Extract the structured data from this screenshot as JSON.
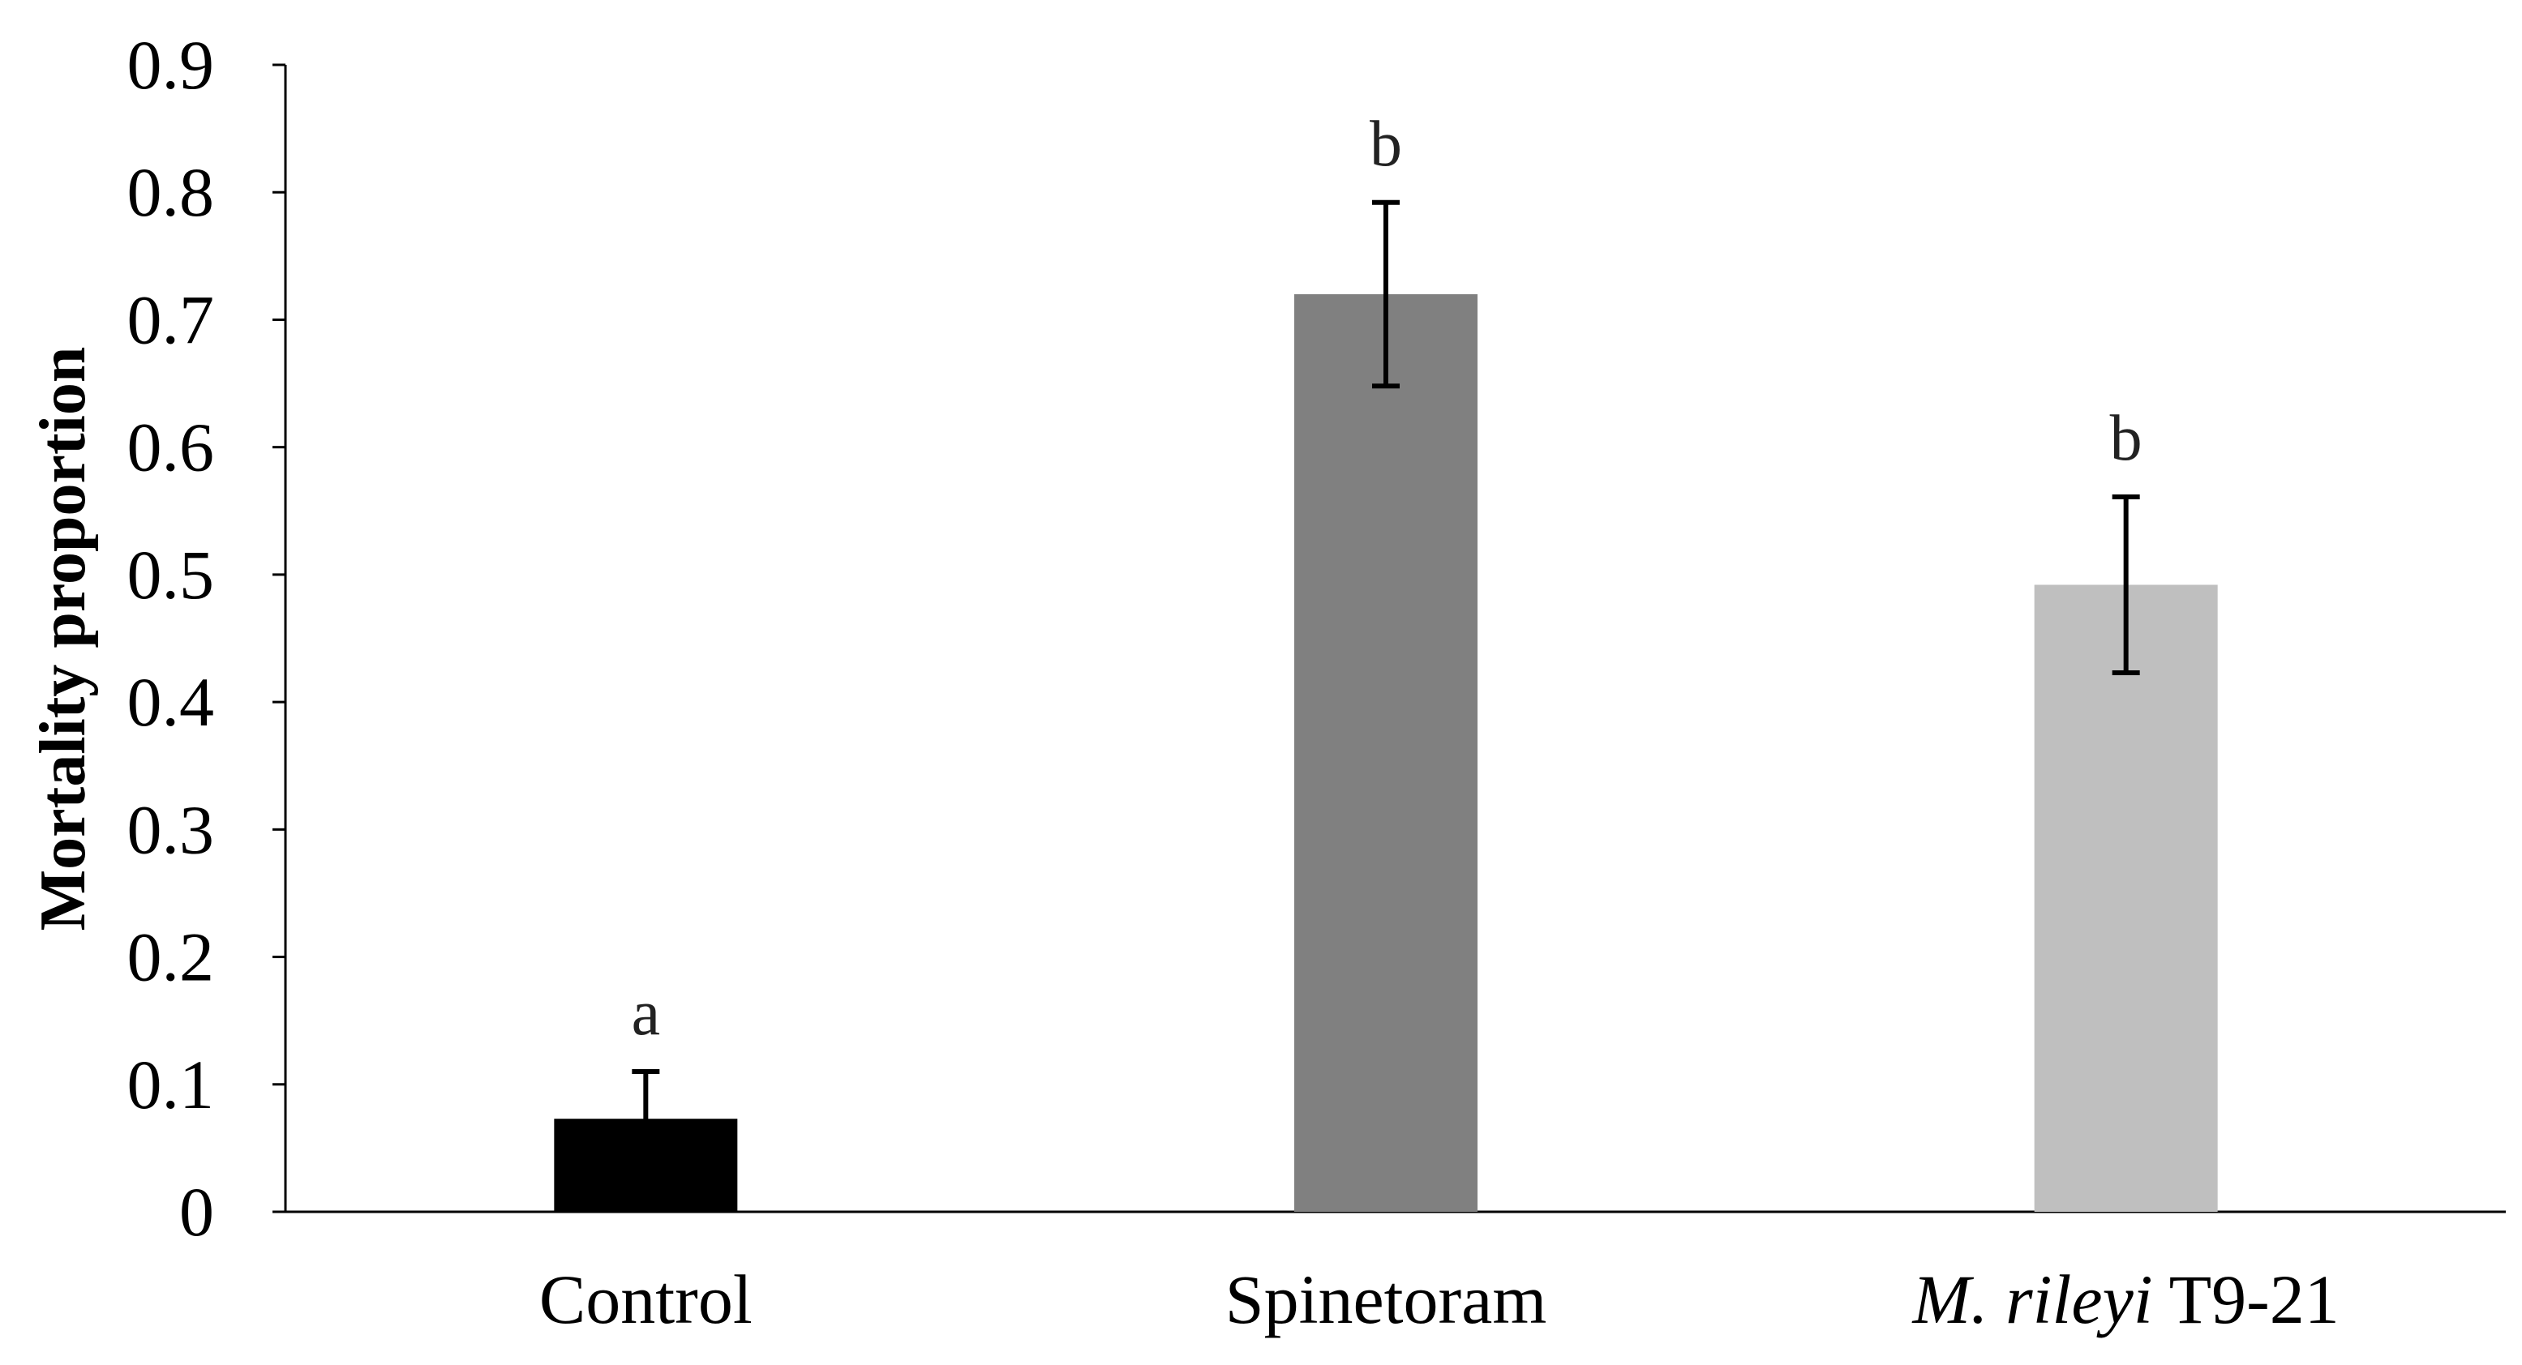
{
  "chart_data": {
    "type": "bar",
    "title": "",
    "xlabel": "",
    "ylabel": "Mortality proportion",
    "ylim": [
      0,
      0.9
    ],
    "yticks": [
      "0",
      "0.1",
      "0.2",
      "0.3",
      "0.4",
      "0.5",
      "0.6",
      "0.7",
      "0.8",
      "0.9"
    ],
    "categories": [
      {
        "italic": "",
        "text": "Control"
      },
      {
        "italic": "",
        "text": "Spinetoram"
      },
      {
        "italic": "M. rileyi",
        "text": " T9-21"
      }
    ],
    "values": [
      0.073,
      0.72,
      0.492
    ],
    "errors": [
      0.037,
      0.072,
      0.069
    ],
    "significance": [
      "a",
      "b",
      "b"
    ],
    "colors": [
      "#000000",
      "#808080",
      "#bfbfbf"
    ],
    "grid": false
  }
}
